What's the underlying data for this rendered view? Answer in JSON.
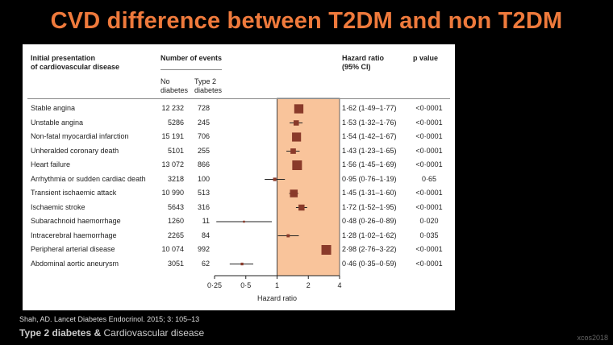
{
  "slide": {
    "title": "CVD difference between T2DM and non T2DM",
    "citation": "Shah, AD. Lancet Diabetes Endocrinol. 2015; 3: 105–13",
    "subtitle_bold": "Type 2 diabetes &",
    "subtitle_rest": " Cardiovascular disease",
    "watermark": "xcos2018"
  },
  "headers": {
    "presentation_line1": "Initial presentation",
    "presentation_line2": "of cardiovascular disease",
    "events": "Number of events",
    "no_diabetes_1": "No",
    "no_diabetes_2": "diabetes",
    "type2_1": "Type 2",
    "type2_2": "diabetes",
    "hr_1": "Hazard ratio",
    "hr_2": "(95% CI)",
    "pvalue": "p value"
  },
  "colors": {
    "title": "#ef7a3c",
    "shade": "#f9c49b",
    "marker": "#8a3a2a"
  },
  "chart_data": {
    "type": "scatter",
    "title": "",
    "xlabel": "Hazard ratio",
    "ylabel": "",
    "xscale": "log",
    "xlim": [
      0.25,
      4
    ],
    "xticks": [
      0.25,
      0.5,
      1,
      2,
      4
    ],
    "xtick_labels": [
      "0·25",
      "0·5",
      "1",
      "2",
      "4"
    ],
    "shaded_region": [
      1,
      4
    ],
    "rows": [
      {
        "label": "Stable angina",
        "no_diabetes": "12 232",
        "type2": "728",
        "hr": 1.62,
        "lo": 1.49,
        "hi": 1.77,
        "hr_text": "1·62 (1·49–1·77)",
        "p": "<0·0001"
      },
      {
        "label": "Unstable angina",
        "no_diabetes": "5286",
        "type2": "245",
        "hr": 1.53,
        "lo": 1.32,
        "hi": 1.76,
        "hr_text": "1·53 (1·32–1·76)",
        "p": "<0·0001"
      },
      {
        "label": "Non-fatal myocardial infarction",
        "no_diabetes": "15 191",
        "type2": "706",
        "hr": 1.54,
        "lo": 1.42,
        "hi": 1.67,
        "hr_text": "1·54 (1·42–1·67)",
        "p": "<0·0001"
      },
      {
        "label": "Unheralded coronary death",
        "no_diabetes": "5101",
        "type2": "255",
        "hr": 1.43,
        "lo": 1.23,
        "hi": 1.65,
        "hr_text": "1·43 (1·23–1·65)",
        "p": "<0·0001"
      },
      {
        "label": "Heart failure",
        "no_diabetes": "13 072",
        "type2": "866",
        "hr": 1.56,
        "lo": 1.45,
        "hi": 1.69,
        "hr_text": "1·56 (1·45–1·69)",
        "p": "<0·0001"
      },
      {
        "label": "Arrhythmia or sudden cardiac death",
        "no_diabetes": "3218",
        "type2": "100",
        "hr": 0.95,
        "lo": 0.76,
        "hi": 1.19,
        "hr_text": "0·95 (0·76–1·19)",
        "p": "0·65"
      },
      {
        "label": "Transient ischaemic attack",
        "no_diabetes": "10 990",
        "type2": "513",
        "hr": 1.45,
        "lo": 1.31,
        "hi": 1.6,
        "hr_text": "1·45 (1·31–1·60)",
        "p": "<0·0001"
      },
      {
        "label": "Ischaemic stroke",
        "no_diabetes": "5643",
        "type2": "316",
        "hr": 1.72,
        "lo": 1.52,
        "hi": 1.95,
        "hr_text": "1·72 (1·52–1·95)",
        "p": "<0·0001"
      },
      {
        "label": "Subarachnoid haemorrhage",
        "no_diabetes": "1260",
        "type2": "11",
        "hr": 0.48,
        "lo": 0.26,
        "hi": 0.89,
        "hr_text": "0·48 (0·26–0·89)",
        "p": "0·020"
      },
      {
        "label": "Intracerebral haemorrhage",
        "no_diabetes": "2265",
        "type2": "84",
        "hr": 1.28,
        "lo": 1.02,
        "hi": 1.62,
        "hr_text": "1·28 (1·02–1·62)",
        "p": "0·035"
      },
      {
        "label": "Peripheral arterial disease",
        "no_diabetes": "10 074",
        "type2": "992",
        "hr": 2.98,
        "lo": 2.76,
        "hi": 3.22,
        "hr_text": "2·98 (2·76–3·22)",
        "p": "<0·0001"
      },
      {
        "label": "Abdominal aortic aneurysm",
        "no_diabetes": "3051",
        "type2": "62",
        "hr": 0.46,
        "lo": 0.35,
        "hi": 0.59,
        "hr_text": "0·46 (0·35–0·59)",
        "p": "<0·0001"
      }
    ]
  }
}
